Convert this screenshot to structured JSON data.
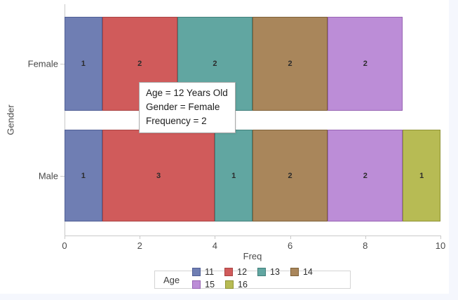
{
  "page": {
    "background": "#f5f7fd",
    "panel_background": "#ffffff"
  },
  "chart_data": {
    "type": "bar",
    "orientation": "horizontal",
    "stacked": true,
    "xlabel": "Freq",
    "ylabel": "Gender",
    "xlim": [
      0,
      10
    ],
    "xticks": [
      0,
      2,
      4,
      6,
      8,
      10
    ],
    "categories": [
      "Female",
      "Male"
    ],
    "series": [
      {
        "name": "11",
        "fill": "#6F7EB3",
        "border": "#4F5E94",
        "values": [
          1,
          1
        ]
      },
      {
        "name": "12",
        "fill": "#D05B5B",
        "border": "#A94343",
        "values": [
          2,
          3
        ]
      },
      {
        "name": "13",
        "fill": "#61A6A1",
        "border": "#417F7A",
        "values": [
          2,
          1
        ]
      },
      {
        "name": "14",
        "fill": "#A9865B",
        "border": "#7F6138",
        "values": [
          2,
          2
        ]
      },
      {
        "name": "15",
        "fill": "#BC8DD7",
        "border": "#9763B3",
        "values": [
          2,
          2
        ]
      },
      {
        "name": "16",
        "fill": "#B7BB54",
        "border": "#8F9334",
        "values": [
          0,
          1
        ]
      }
    ],
    "legend_title": "Age",
    "legend_position": "bottom",
    "grid": false,
    "value_labels_shown": true
  },
  "tooltip": {
    "lines": [
      "Age = 12 Years Old",
      "Gender = Female",
      "Frequency = 2"
    ]
  },
  "colors": {
    "axis_line": "#c9c9c9",
    "axis_text": "#4a4a4a",
    "value_label": "#2b2b2b"
  }
}
